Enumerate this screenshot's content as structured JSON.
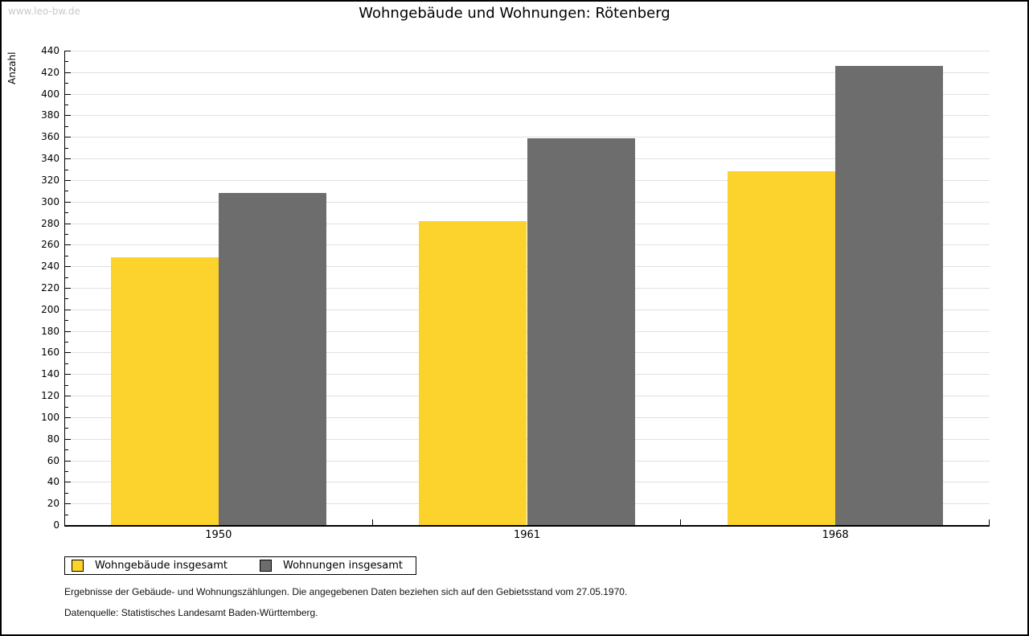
{
  "watermark": "www.leo-bw.de",
  "notes": {
    "line1": "Ergebnisse der Gebäude- und Wohnungszählungen. Die angegebenen Daten beziehen sich auf den Gebietsstand vom 27.05.1970.",
    "line2": "Datenquelle: Statistisches Landesamt Baden-Württemberg."
  },
  "colors": {
    "buildings": "#FCD32D",
    "apartments": "#6D6D6D",
    "gridline": "#E0E0E0",
    "axis": "#000000",
    "watermark": "#C9C9C9"
  },
  "chart_data": {
    "type": "bar",
    "title": "Wohngebäude und Wohnungen: Rötenberg",
    "ylabel": "Anzahl",
    "xlabel": "",
    "categories": [
      "1950",
      "1961",
      "1968"
    ],
    "series": [
      {
        "name": "Wohngebäude insgesamt",
        "color": "#FCD32D",
        "values": [
          248,
          282,
          328
        ]
      },
      {
        "name": "Wohnungen insgesamt",
        "color": "#6D6D6D",
        "values": [
          308,
          359,
          426
        ]
      }
    ],
    "ylim": [
      0,
      440
    ],
    "ytick_major": 20,
    "ytick_minor": 10,
    "grid": true,
    "legend_position": "bottom-left"
  }
}
